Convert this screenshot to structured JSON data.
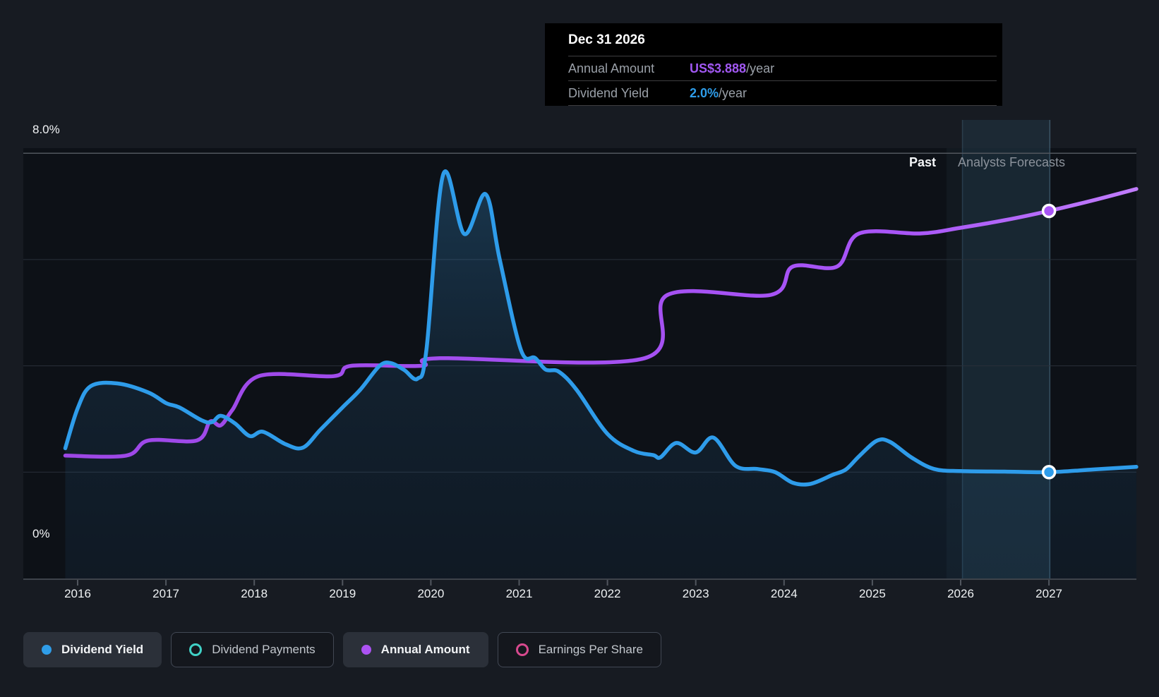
{
  "tooltip": {
    "date": "Dec 31 2026",
    "rows": [
      {
        "label": "Annual Amount",
        "value": "US$3.888",
        "suffix": "/year",
        "color": "#a158f2"
      },
      {
        "label": "Dividend Yield",
        "value": "2.0%",
        "suffix": "/year",
        "color": "#2e9dea"
      }
    ]
  },
  "axis": {
    "y_top_label": "8.0%",
    "y_bottom_label": "0%"
  },
  "annotations": {
    "past": "Past",
    "forecast": "Analysts Forecasts"
  },
  "legend": [
    {
      "label": "Dividend Yield",
      "icon": "dividend-yield-dot-icon",
      "style": "filled-dot",
      "color": "#2f9de8",
      "active": true
    },
    {
      "label": "Dividend Payments",
      "icon": "dividend-payments-ring-icon",
      "style": "ring",
      "color": "#40d1c6",
      "active": false
    },
    {
      "label": "Annual Amount",
      "icon": "annual-amount-dot-icon",
      "style": "filled-dot",
      "color": "#ac52f3",
      "active": true
    },
    {
      "label": "Earnings Per Share",
      "icon": "earnings-per-share-ring-icon",
      "style": "ring",
      "color": "#d7498e",
      "active": false
    }
  ],
  "chart_data": {
    "type": "line",
    "title": "Dividend yield history and analysts forecast",
    "x_ticks": [
      2016,
      2017,
      2018,
      2019,
      2020,
      2021,
      2022,
      2023,
      2024,
      2025,
      2026,
      2027
    ],
    "x_range": [
      2015.86,
      2027.99
    ],
    "ylim_percent": [
      0,
      8
    ],
    "gridlines_percent": [
      8,
      6,
      4,
      2,
      0
    ],
    "grid": true,
    "legend_position": "bottom",
    "past_forecast_boundary": 2025.84,
    "highlight_band": [
      2026.02,
      2027.01
    ],
    "hover_x": 2027.0,
    "series": [
      {
        "name": "Dividend Yield",
        "unit": "%",
        "color": "#2e9cea",
        "area_fill": true,
        "points": [
          [
            2015.86,
            2.45
          ],
          [
            2016.0,
            3.2
          ],
          [
            2016.15,
            3.62
          ],
          [
            2016.45,
            3.67
          ],
          [
            2016.8,
            3.5
          ],
          [
            2017.0,
            3.3
          ],
          [
            2017.15,
            3.22
          ],
          [
            2017.4,
            2.98
          ],
          [
            2017.52,
            2.94
          ],
          [
            2017.62,
            3.06
          ],
          [
            2017.78,
            2.92
          ],
          [
            2017.95,
            2.68
          ],
          [
            2018.1,
            2.76
          ],
          [
            2018.35,
            2.53
          ],
          [
            2018.55,
            2.46
          ],
          [
            2018.75,
            2.8
          ],
          [
            2019.0,
            3.22
          ],
          [
            2019.2,
            3.55
          ],
          [
            2019.42,
            4.0
          ],
          [
            2019.55,
            4.05
          ],
          [
            2019.7,
            3.92
          ],
          [
            2019.85,
            3.76
          ],
          [
            2019.95,
            4.3
          ],
          [
            2020.14,
            7.6
          ],
          [
            2020.38,
            6.48
          ],
          [
            2020.62,
            7.23
          ],
          [
            2020.78,
            6.0
          ],
          [
            2021.02,
            4.3
          ],
          [
            2021.18,
            4.15
          ],
          [
            2021.3,
            3.93
          ],
          [
            2021.45,
            3.89
          ],
          [
            2021.65,
            3.55
          ],
          [
            2022.0,
            2.72
          ],
          [
            2022.3,
            2.4
          ],
          [
            2022.52,
            2.32
          ],
          [
            2022.6,
            2.28
          ],
          [
            2022.78,
            2.55
          ],
          [
            2023.0,
            2.37
          ],
          [
            2023.2,
            2.65
          ],
          [
            2023.45,
            2.12
          ],
          [
            2023.7,
            2.06
          ],
          [
            2023.9,
            2.0
          ],
          [
            2024.1,
            1.8
          ],
          [
            2024.3,
            1.78
          ],
          [
            2024.55,
            1.95
          ],
          [
            2024.7,
            2.05
          ],
          [
            2024.85,
            2.3
          ],
          [
            2025.05,
            2.59
          ],
          [
            2025.2,
            2.57
          ],
          [
            2025.45,
            2.27
          ],
          [
            2025.7,
            2.06
          ],
          [
            2026.0,
            2.02
          ],
          [
            2026.5,
            2.01
          ],
          [
            2027.0,
            2.0
          ],
          [
            2027.5,
            2.05
          ],
          [
            2027.99,
            2.1
          ]
        ]
      },
      {
        "name": "Annual Amount",
        "unit": "US$/year",
        "color": "#a855f7",
        "area_fill": false,
        "points": [
          [
            2015.86,
            1.3
          ],
          [
            2016.55,
            1.3
          ],
          [
            2016.8,
            1.46
          ],
          [
            2017.35,
            1.46
          ],
          [
            2017.5,
            1.66
          ],
          [
            2017.62,
            1.62
          ],
          [
            2017.75,
            1.78
          ],
          [
            2018.05,
            2.14
          ],
          [
            2018.9,
            2.14
          ],
          [
            2019.1,
            2.25
          ],
          [
            2019.9,
            2.25
          ],
          [
            2020.1,
            2.33
          ],
          [
            2022.42,
            2.33
          ],
          [
            2022.68,
            3.0
          ],
          [
            2023.85,
            3.0
          ],
          [
            2024.1,
            3.3
          ],
          [
            2024.6,
            3.3
          ],
          [
            2024.85,
            3.65
          ],
          [
            2025.55,
            3.65
          ],
          [
            2026.0,
            3.71
          ],
          [
            2026.5,
            3.79
          ],
          [
            2027.0,
            3.888
          ],
          [
            2027.5,
            4.0
          ],
          [
            2027.99,
            4.12
          ]
        ]
      }
    ],
    "markers": [
      {
        "series": "Annual Amount",
        "x": 2027.0,
        "value": 3.888,
        "label": "US$3.888/year"
      },
      {
        "series": "Dividend Yield",
        "x": 2027.0,
        "value": 2.0,
        "label": "2.0%/year"
      }
    ]
  }
}
